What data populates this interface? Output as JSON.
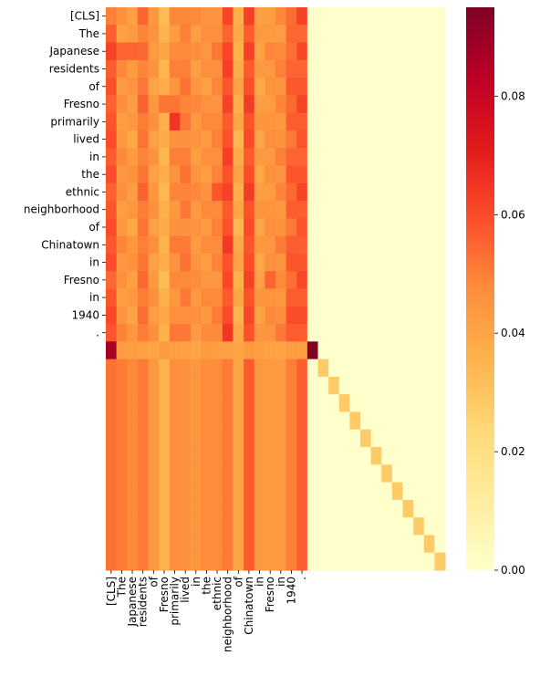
{
  "chart_data": {
    "type": "heatmap",
    "title": "",
    "xlabel": "",
    "ylabel": "",
    "x_tick_labels": [
      "[CLS]",
      "The",
      "Japanese",
      "residents",
      "of",
      "Fresno",
      "primarily",
      "lived",
      "in",
      "the",
      "ethnic",
      "neighborhood",
      "of",
      "Chinatown",
      "in",
      "Fresno",
      "in",
      "1940",
      "."
    ],
    "y_tick_labels": [
      "[CLS]",
      "The",
      "Japanese",
      "residents",
      "of",
      "Fresno",
      "primarily",
      "lived",
      "in",
      "the",
      "ethnic",
      "neighborhood",
      "of",
      "Chinatown",
      "in",
      "Fresno",
      "in",
      "1940",
      "."
    ],
    "n_rows": 32,
    "n_cols": 32,
    "colormap": "YlOrRd",
    "colorbar": {
      "vmin": 0.0,
      "vmax": 0.095,
      "ticks": [
        0.0,
        0.02,
        0.04,
        0.06,
        0.08
      ],
      "tick_labels": [
        "0.00",
        "0.02",
        "0.04",
        "0.06",
        "0.08"
      ]
    },
    "column_profile": [
      0.058,
      0.045,
      0.043,
      0.052,
      0.044,
      0.036,
      0.047,
      0.05,
      0.045,
      0.045,
      0.048,
      0.06,
      0.038,
      0.06,
      0.042,
      0.045,
      0.047,
      0.055,
      0.058
    ],
    "row_scale": [
      1.0,
      0.97,
      1.02,
      1.0,
      0.99,
      1.01,
      1.0,
      0.98,
      1.0,
      1.0,
      1.01,
      1.0,
      0.98,
      1.02,
      1.0,
      0.99,
      1.0,
      1.0,
      1.03
    ],
    "special_cells": [
      {
        "row": 0,
        "col": 0,
        "value": 0.05
      },
      {
        "row": 0,
        "col": 18,
        "value": 0.062
      },
      {
        "row": 2,
        "col": 1,
        "value": 0.055
      },
      {
        "row": 2,
        "col": 2,
        "value": 0.055
      },
      {
        "row": 5,
        "col": 5,
        "value": 0.052
      },
      {
        "row": 5,
        "col": 6,
        "value": 0.052
      },
      {
        "row": 6,
        "col": 6,
        "value": 0.065
      },
      {
        "row": 10,
        "col": 10,
        "value": 0.058
      },
      {
        "row": 15,
        "col": 15,
        "value": 0.055
      },
      {
        "row": 17,
        "col": 17,
        "value": 0.06
      }
    ],
    "separator_row": {
      "row": 19,
      "base": 0.04,
      "ends": [
        {
          "col": 0,
          "value": 0.088
        },
        {
          "col": 19,
          "value": 0.095
        }
      ]
    },
    "padding_rows_column_profile": [
      0.055,
      0.052,
      0.048,
      0.05,
      0.042,
      0.038,
      0.048,
      0.046,
      0.043,
      0.045,
      0.05,
      0.052,
      0.04,
      0.056,
      0.042,
      0.046,
      0.045,
      0.05,
      0.055
    ],
    "padding_diagonal": {
      "start_row": 20,
      "start_col": 20,
      "value": 0.028
    },
    "padding_region_value": 0.0
  }
}
